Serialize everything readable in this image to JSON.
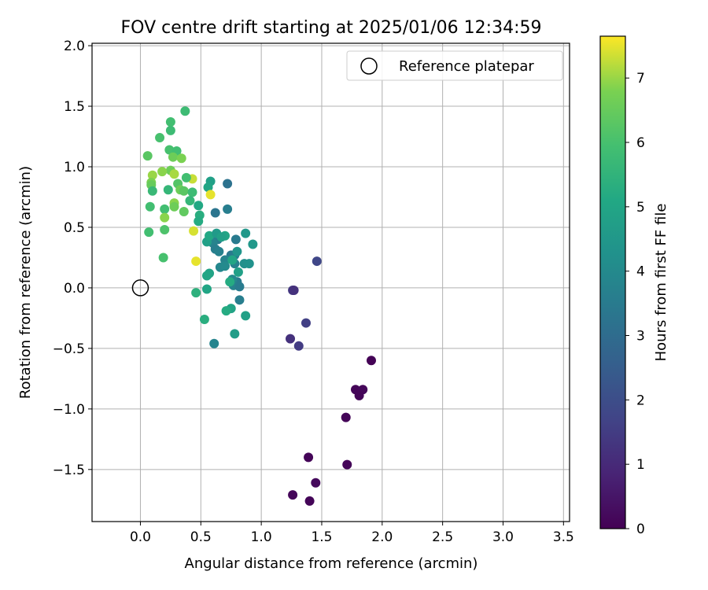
{
  "chart_data": {
    "type": "scatter",
    "title": "FOV centre drift starting at 2025/01/06 12:34:59",
    "xlabel": "Angular distance from reference (arcmin)",
    "ylabel": "Rotation from reference (arcmin)",
    "xlim": [
      -0.4,
      3.55
    ],
    "ylim": [
      -1.93,
      2.02
    ],
    "x_ticks": [
      0.0,
      0.5,
      1.0,
      1.5,
      2.0,
      2.5,
      3.0,
      3.5
    ],
    "x_tick_labels": [
      "0.0",
      "0.5",
      "1.0",
      "1.5",
      "2.0",
      "2.5",
      "3.0",
      "3.5"
    ],
    "y_ticks": [
      -1.5,
      -1.0,
      -0.5,
      0.0,
      0.5,
      1.0,
      1.5,
      2.0
    ],
    "y_tick_labels": [
      "−1.5",
      "−1.0",
      "−0.5",
      "0.0",
      "0.5",
      "1.0",
      "1.5",
      "2.0"
    ],
    "grid": true,
    "legend": {
      "placement": "top-right",
      "entries": [
        "Reference platepar"
      ]
    },
    "reference_point": {
      "x": 0.0,
      "y": 0.0
    },
    "colorbar": {
      "label": "Hours from first FF file",
      "colormap": "viridis",
      "range": [
        0,
        7.65
      ],
      "ticks": [
        0,
        1,
        2,
        3,
        4,
        5,
        6,
        7
      ],
      "tick_labels": [
        "0",
        "1",
        "2",
        "3",
        "4",
        "5",
        "6",
        "7"
      ]
    },
    "points": [
      {
        "x": 1.91,
        "y": -0.6,
        "c": 0.05
      },
      {
        "x": 1.78,
        "y": -0.84,
        "c": 0.1
      },
      {
        "x": 1.84,
        "y": -0.84,
        "c": 0.15
      },
      {
        "x": 1.81,
        "y": -0.89,
        "c": 0.1
      },
      {
        "x": 1.7,
        "y": -1.07,
        "c": 0.1
      },
      {
        "x": 1.71,
        "y": -1.46,
        "c": 0.1
      },
      {
        "x": 1.39,
        "y": -1.4,
        "c": 0.1
      },
      {
        "x": 1.45,
        "y": -1.61,
        "c": 0.2
      },
      {
        "x": 1.26,
        "y": -1.71,
        "c": 0.15
      },
      {
        "x": 1.4,
        "y": -1.76,
        "c": 0.1
      },
      {
        "x": 1.46,
        "y": 0.22,
        "c": 1.8
      },
      {
        "x": 1.26,
        "y": -0.02,
        "c": 1.4
      },
      {
        "x": 1.27,
        "y": -0.02,
        "c": 1.2
      },
      {
        "x": 1.37,
        "y": -0.29,
        "c": 1.6
      },
      {
        "x": 1.24,
        "y": -0.42,
        "c": 1.2
      },
      {
        "x": 1.31,
        "y": -0.48,
        "c": 1.5
      },
      {
        "x": 0.72,
        "y": 0.86,
        "c": 3.2
      },
      {
        "x": 0.62,
        "y": 0.62,
        "c": 3.3
      },
      {
        "x": 0.72,
        "y": 0.65,
        "c": 3.6
      },
      {
        "x": 0.79,
        "y": 0.4,
        "c": 3.5
      },
      {
        "x": 0.64,
        "y": 0.4,
        "c": 3.5
      },
      {
        "x": 0.6,
        "y": 0.37,
        "c": 3.8
      },
      {
        "x": 0.62,
        "y": 0.32,
        "c": 3.6
      },
      {
        "x": 0.65,
        "y": 0.3,
        "c": 3.7
      },
      {
        "x": 0.75,
        "y": 0.27,
        "c": 3.4
      },
      {
        "x": 0.78,
        "y": 0.27,
        "c": 3.5
      },
      {
        "x": 0.7,
        "y": 0.23,
        "c": 3.8
      },
      {
        "x": 0.78,
        "y": 0.2,
        "c": 3.7
      },
      {
        "x": 0.66,
        "y": 0.17,
        "c": 3.9
      },
      {
        "x": 0.7,
        "y": 0.18,
        "c": 4.0
      },
      {
        "x": 0.8,
        "y": 0.05,
        "c": 3.5
      },
      {
        "x": 0.76,
        "y": 0.07,
        "c": 4.0
      },
      {
        "x": 0.77,
        "y": 0.02,
        "c": 3.8
      },
      {
        "x": 0.82,
        "y": 0.01,
        "c": 3.5
      },
      {
        "x": 0.82,
        "y": -0.1,
        "c": 3.6
      },
      {
        "x": 0.61,
        "y": -0.46,
        "c": 3.8
      },
      {
        "x": 0.87,
        "y": 0.45,
        "c": 4.5
      },
      {
        "x": 0.93,
        "y": 0.36,
        "c": 4.5
      },
      {
        "x": 0.55,
        "y": 0.38,
        "c": 4.8
      },
      {
        "x": 0.57,
        "y": 0.43,
        "c": 5.1
      },
      {
        "x": 0.63,
        "y": 0.45,
        "c": 4.6
      },
      {
        "x": 0.7,
        "y": 0.43,
        "c": 5.0
      },
      {
        "x": 0.67,
        "y": 0.42,
        "c": 4.8
      },
      {
        "x": 0.58,
        "y": 0.88,
        "c": 4.8
      },
      {
        "x": 0.56,
        "y": 0.83,
        "c": 5.0
      },
      {
        "x": 0.48,
        "y": 0.68,
        "c": 5.1
      },
      {
        "x": 0.49,
        "y": 0.6,
        "c": 5.3
      },
      {
        "x": 0.48,
        "y": 0.55,
        "c": 5.2
      },
      {
        "x": 0.8,
        "y": 0.3,
        "c": 4.4
      },
      {
        "x": 0.86,
        "y": 0.2,
        "c": 4.2
      },
      {
        "x": 0.9,
        "y": 0.2,
        "c": 4.3
      },
      {
        "x": 0.76,
        "y": 0.23,
        "c": 5.0
      },
      {
        "x": 0.81,
        "y": 0.13,
        "c": 4.8
      },
      {
        "x": 0.57,
        "y": 0.12,
        "c": 4.9
      },
      {
        "x": 0.55,
        "y": 0.1,
        "c": 5.0
      },
      {
        "x": 0.74,
        "y": 0.05,
        "c": 5.2
      },
      {
        "x": 0.55,
        "y": -0.01,
        "c": 5.0
      },
      {
        "x": 0.46,
        "y": -0.04,
        "c": 5.4
      },
      {
        "x": 0.75,
        "y": -0.17,
        "c": 4.9
      },
      {
        "x": 0.71,
        "y": -0.19,
        "c": 5.2
      },
      {
        "x": 0.87,
        "y": -0.23,
        "c": 4.8
      },
      {
        "x": 0.53,
        "y": -0.26,
        "c": 5.3
      },
      {
        "x": 0.78,
        "y": -0.38,
        "c": 4.7
      },
      {
        "x": 0.37,
        "y": 1.46,
        "c": 5.8
      },
      {
        "x": 0.25,
        "y": 1.37,
        "c": 5.9
      },
      {
        "x": 0.25,
        "y": 1.3,
        "c": 5.8
      },
      {
        "x": 0.16,
        "y": 1.24,
        "c": 6.0
      },
      {
        "x": 0.24,
        "y": 1.14,
        "c": 6.0
      },
      {
        "x": 0.3,
        "y": 1.13,
        "c": 5.9
      },
      {
        "x": 0.06,
        "y": 1.09,
        "c": 6.3
      },
      {
        "x": 0.27,
        "y": 1.08,
        "c": 6.6
      },
      {
        "x": 0.34,
        "y": 1.07,
        "c": 6.8
      },
      {
        "x": 0.25,
        "y": 0.97,
        "c": 6.6
      },
      {
        "x": 0.18,
        "y": 0.96,
        "c": 6.9
      },
      {
        "x": 0.1,
        "y": 0.93,
        "c": 7.0
      },
      {
        "x": 0.28,
        "y": 0.94,
        "c": 7.1
      },
      {
        "x": 0.43,
        "y": 0.9,
        "c": 7.3
      },
      {
        "x": 0.38,
        "y": 0.91,
        "c": 5.9
      },
      {
        "x": 0.09,
        "y": 0.87,
        "c": 6.8
      },
      {
        "x": 0.09,
        "y": 0.85,
        "c": 6.5
      },
      {
        "x": 0.31,
        "y": 0.86,
        "c": 6.2
      },
      {
        "x": 0.33,
        "y": 0.81,
        "c": 6.6
      },
      {
        "x": 0.36,
        "y": 0.8,
        "c": 6.3
      },
      {
        "x": 0.23,
        "y": 0.81,
        "c": 5.6
      },
      {
        "x": 0.1,
        "y": 0.8,
        "c": 5.7
      },
      {
        "x": 0.43,
        "y": 0.79,
        "c": 5.8
      },
      {
        "x": 0.58,
        "y": 0.77,
        "c": 7.5
      },
      {
        "x": 0.41,
        "y": 0.72,
        "c": 5.6
      },
      {
        "x": 0.28,
        "y": 0.7,
        "c": 6.9
      },
      {
        "x": 0.28,
        "y": 0.67,
        "c": 6.6
      },
      {
        "x": 0.08,
        "y": 0.67,
        "c": 5.9
      },
      {
        "x": 0.2,
        "y": 0.65,
        "c": 5.9
      },
      {
        "x": 0.36,
        "y": 0.63,
        "c": 6.4
      },
      {
        "x": 0.2,
        "y": 0.58,
        "c": 6.9
      },
      {
        "x": 0.2,
        "y": 0.48,
        "c": 6.1
      },
      {
        "x": 0.07,
        "y": 0.46,
        "c": 5.9
      },
      {
        "x": 0.44,
        "y": 0.47,
        "c": 7.4
      },
      {
        "x": 0.19,
        "y": 0.25,
        "c": 6.0
      },
      {
        "x": 0.46,
        "y": 0.22,
        "c": 7.5
      }
    ]
  }
}
